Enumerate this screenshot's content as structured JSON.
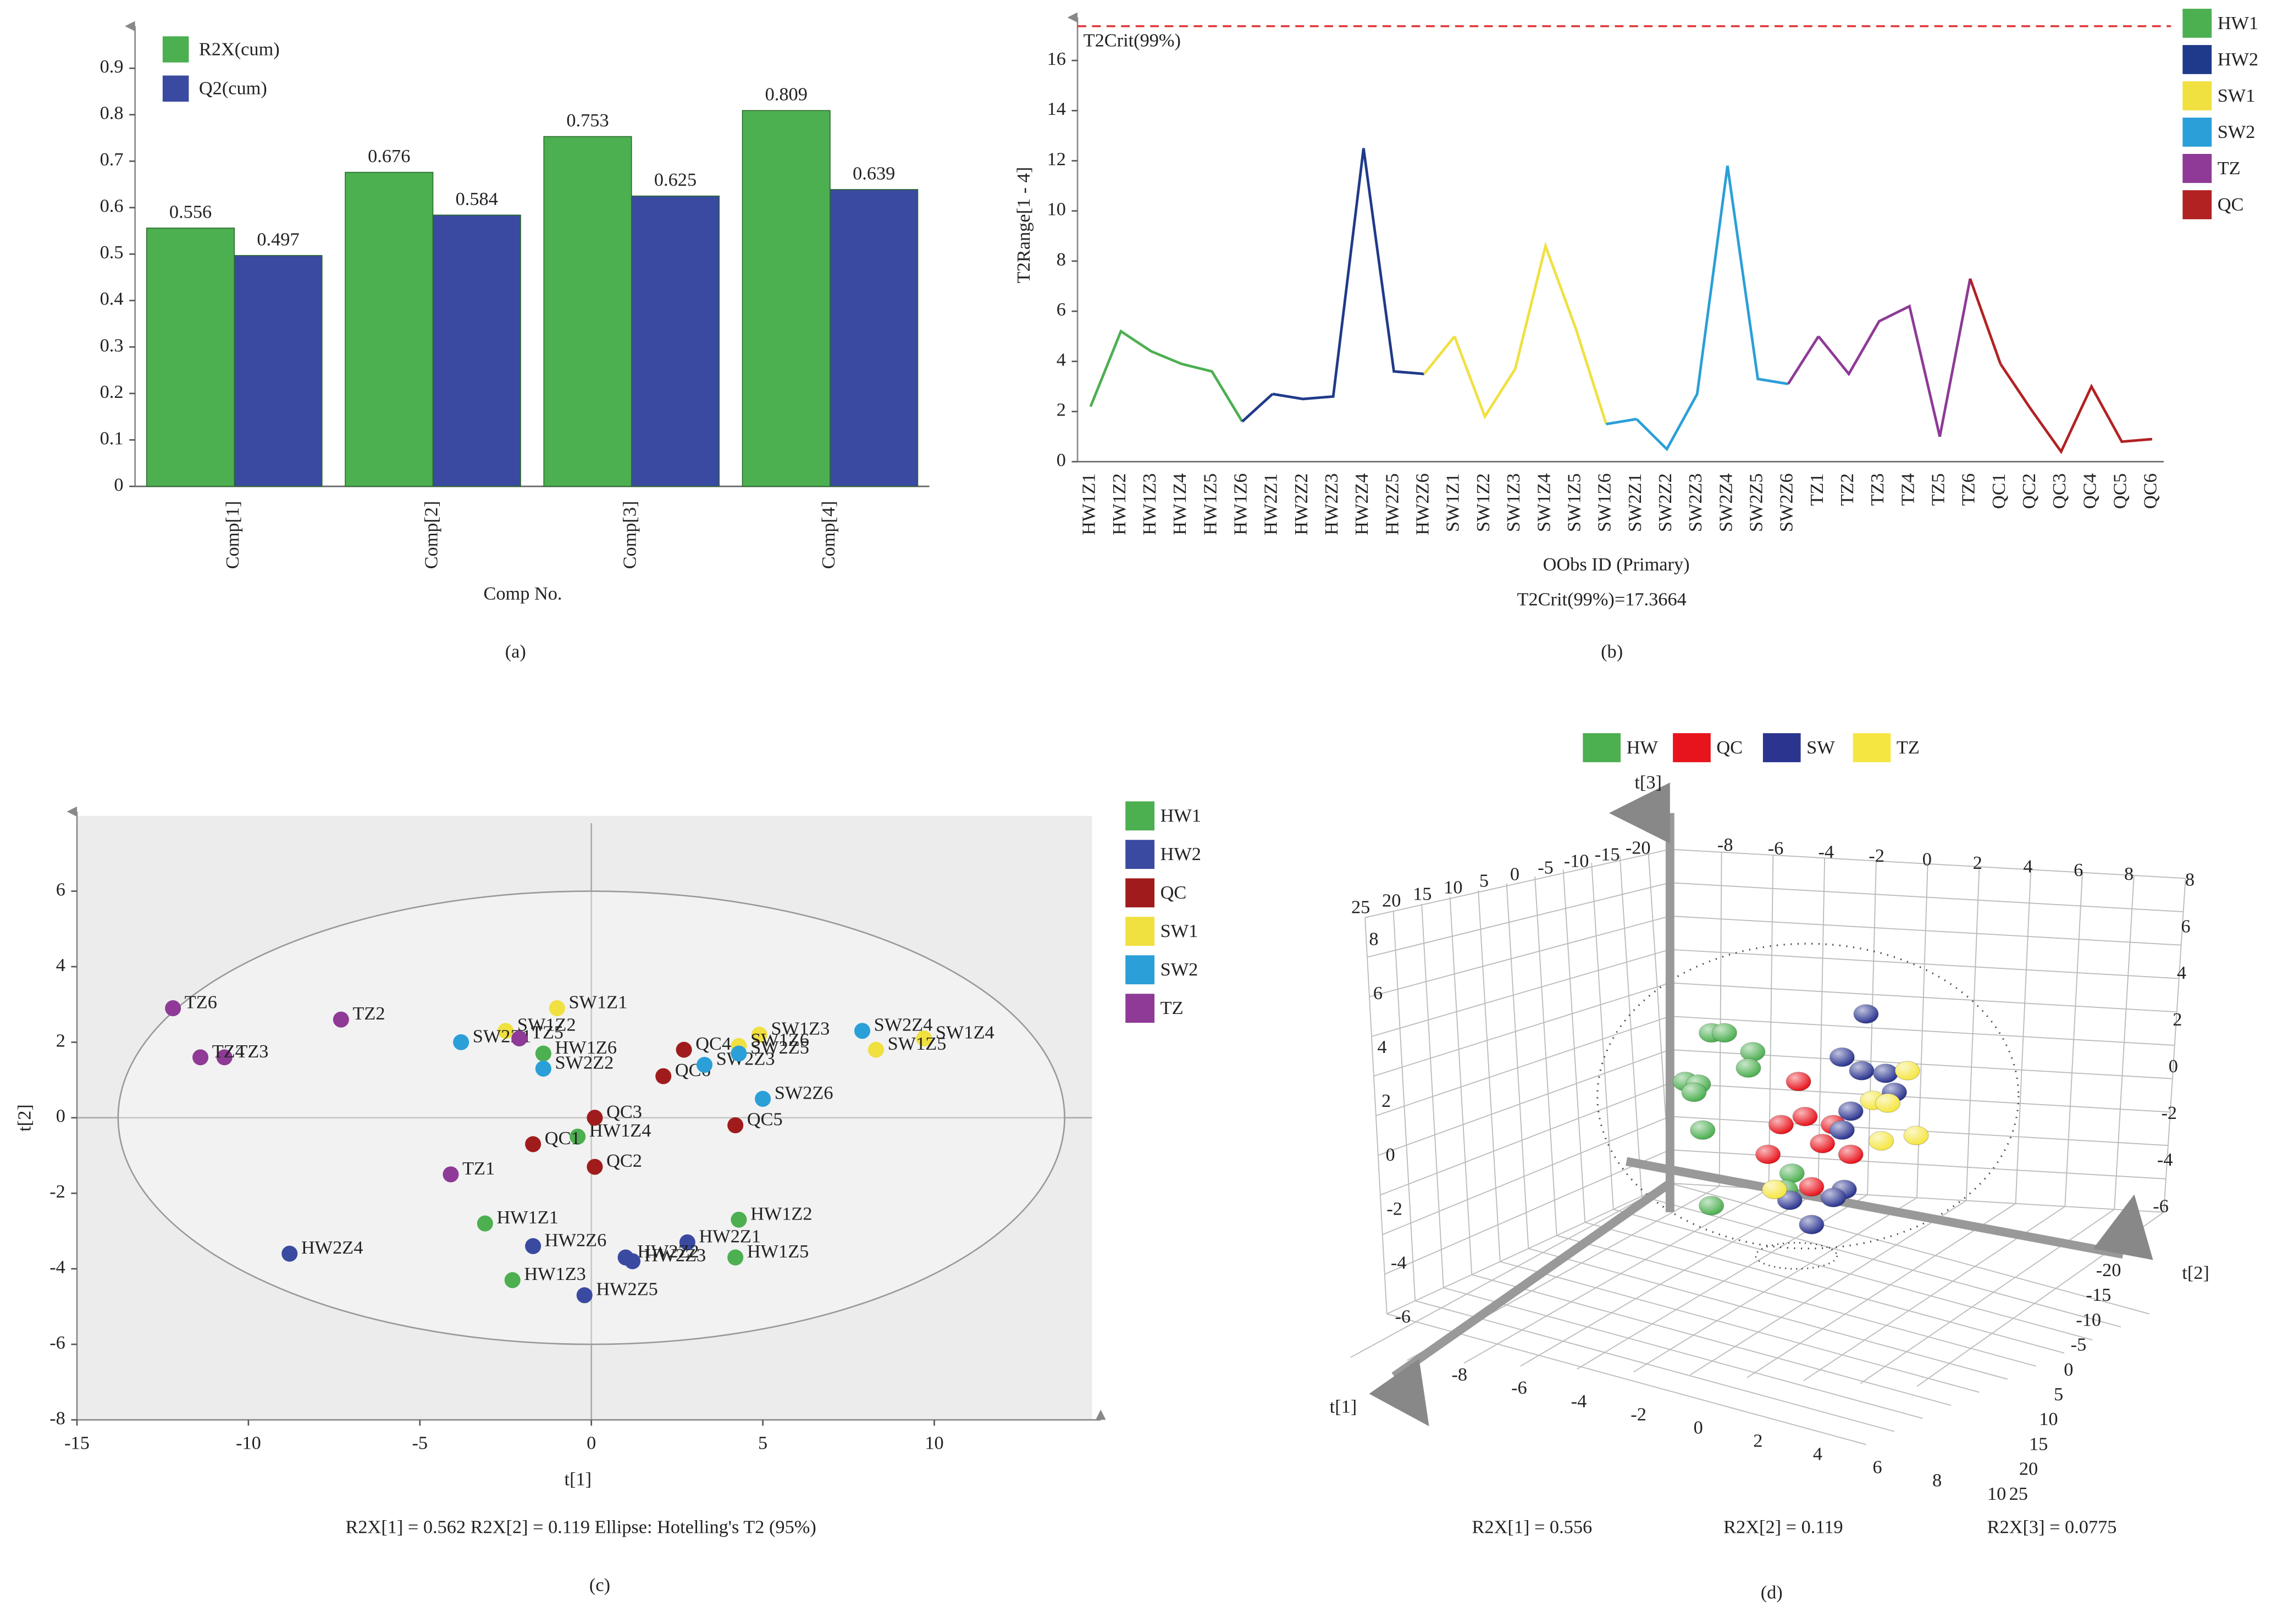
{
  "chart_data": [
    {
      "type": "bar",
      "caption": "(a)",
      "x_label": "Comp No.",
      "categories": [
        "Comp[1]",
        "Comp[2]",
        "Comp[3]",
        "Comp[4]"
      ],
      "series": [
        {
          "name": "R2X(cum)",
          "color": "#4caf50",
          "values": [
            0.556,
            0.676,
            0.753,
            0.809
          ]
        },
        {
          "name": "Q2(cum)",
          "color": "#3a4aa0",
          "values": [
            0.497,
            0.584,
            0.625,
            0.639
          ]
        }
      ],
      "ylim": [
        0,
        0.95
      ],
      "yticks": [
        0,
        0.1,
        0.2,
        0.3,
        0.4,
        0.5,
        0.6,
        0.7,
        0.8,
        0.9
      ],
      "legend": "top-left"
    },
    {
      "type": "line",
      "caption": "(b)",
      "x_label": "OObs ID (Primary)",
      "y_label": "T2Range[1 - 4]",
      "subtitle": "T2Crit(99%)=17.3664",
      "threshold": 17.3664,
      "threshold_label": "T2Crit(99%)",
      "threshold_color": "#e03030",
      "categories": [
        "HW1Z1",
        "HW1Z2",
        "HW1Z3",
        "HW1Z4",
        "HW1Z5",
        "HW1Z6",
        "HW2Z1",
        "HW2Z2",
        "HW2Z3",
        "HW2Z4",
        "HW2Z5",
        "HW2Z6",
        "SW1Z1",
        "SW1Z2",
        "SW1Z3",
        "SW1Z4",
        "SW1Z5",
        "SW1Z6",
        "SW2Z1",
        "SW2Z2",
        "SW2Z3",
        "SW2Z4",
        "SW2Z5",
        "SW2Z6",
        "TZ1",
        "TZ2",
        "TZ3",
        "TZ4",
        "TZ5",
        "TZ6",
        "QC1",
        "QC2",
        "QC3",
        "QC4",
        "QC5",
        "QC6"
      ],
      "series": [
        {
          "name": "HW1",
          "color": "#4caf50",
          "values": [
            2.2,
            5.2,
            4.4,
            3.9,
            3.6,
            1.6,
            null,
            null,
            null,
            null,
            null,
            null,
            null,
            null,
            null,
            null,
            null,
            null,
            null,
            null,
            null,
            null,
            null,
            null,
            null,
            null,
            null,
            null,
            null,
            null,
            null,
            null,
            null,
            null,
            null,
            null
          ]
        },
        {
          "name": "HW2",
          "color": "#1f3a8a",
          "values": [
            null,
            null,
            null,
            null,
            null,
            null,
            2.7,
            2.5,
            2.6,
            12.5,
            3.6,
            3.5,
            null,
            null,
            null,
            null,
            null,
            null,
            null,
            null,
            null,
            null,
            null,
            null,
            null,
            null,
            null,
            null,
            null,
            null,
            null,
            null,
            null,
            null,
            null,
            null
          ]
        },
        {
          "name": "SW1",
          "color": "#f0e040",
          "values": [
            null,
            null,
            null,
            null,
            null,
            null,
            null,
            null,
            null,
            null,
            null,
            null,
            5.0,
            1.8,
            3.7,
            8.6,
            5.3,
            1.5,
            null,
            null,
            null,
            null,
            null,
            null,
            null,
            null,
            null,
            null,
            null,
            null,
            null,
            null,
            null,
            null,
            null,
            null
          ]
        },
        {
          "name": "SW2",
          "color": "#2a9fd8",
          "values": [
            null,
            null,
            null,
            null,
            null,
            null,
            null,
            null,
            null,
            null,
            null,
            null,
            null,
            null,
            null,
            null,
            null,
            null,
            1.7,
            0.5,
            2.7,
            11.8,
            3.3,
            3.1,
            null,
            null,
            null,
            null,
            null,
            null,
            null,
            null,
            null,
            null,
            null,
            null
          ]
        },
        {
          "name": "TZ",
          "color": "#8e3a96",
          "values": [
            null,
            null,
            null,
            null,
            null,
            null,
            null,
            null,
            null,
            null,
            null,
            null,
            null,
            null,
            null,
            null,
            null,
            null,
            null,
            null,
            null,
            null,
            null,
            null,
            5.0,
            3.5,
            5.6,
            6.2,
            1.0,
            7.3,
            null,
            null,
            null,
            null,
            null,
            null
          ]
        },
        {
          "name": "QC",
          "color": "#b22222",
          "values": [
            null,
            null,
            null,
            null,
            null,
            null,
            null,
            null,
            null,
            null,
            null,
            null,
            null,
            null,
            null,
            null,
            null,
            null,
            null,
            null,
            null,
            null,
            null,
            null,
            null,
            null,
            null,
            null,
            null,
            null,
            3.9,
            2.1,
            0.4,
            3.0,
            0.8,
            0.9
          ]
        }
      ],
      "ylim": [
        0,
        17.6
      ],
      "yticks": [
        0,
        2,
        4,
        6,
        8,
        10,
        12,
        14,
        16
      ],
      "legend": "top-right"
    },
    {
      "type": "scatter",
      "caption": "(c)",
      "x_label": "t[1]",
      "y_label": "t[2]",
      "footnote": "R2X[1] = 0.562     R2X[2] = 0.119     Ellipse: Hotelling's T2 (95%)",
      "ellipse": {
        "rx": 13.8,
        "ry": 6.0
      },
      "xlim": [
        -15,
        14.6
      ],
      "xticks": [
        -15,
        -10,
        -5,
        0,
        5,
        10
      ],
      "ylim": [
        -8,
        7.8
      ],
      "yticks": [
        -8,
        -6,
        -4,
        -2,
        0,
        2,
        4,
        6
      ],
      "legend": "right",
      "series": [
        {
          "name": "HW1",
          "color": "#4caf50",
          "labels": [
            "HW1Z1",
            "HW1Z2",
            "HW1Z3",
            "HW1Z4",
            "HW1Z5",
            "HW1Z6"
          ],
          "x": [
            -3.1,
            4.3,
            -2.3,
            -0.4,
            4.2,
            -1.4
          ],
          "y": [
            -2.8,
            -2.7,
            -4.3,
            -0.5,
            -3.7,
            1.7
          ]
        },
        {
          "name": "HW2",
          "color": "#3a4aa0",
          "labels": [
            "HW2Z1",
            "HW2Z2",
            "HW2Z3",
            "HW2Z4",
            "HW2Z5",
            "HW2Z6"
          ],
          "x": [
            2.8,
            1.0,
            1.2,
            -8.8,
            -0.2,
            -1.7
          ],
          "y": [
            -3.3,
            -3.7,
            -3.8,
            -3.6,
            -4.7,
            -3.4
          ]
        },
        {
          "name": "QC",
          "color": "#a01c1c",
          "labels": [
            "QC1",
            "QC2",
            "QC3",
            "QC4",
            "QC5",
            "QC6"
          ],
          "x": [
            -1.7,
            0.1,
            0.1,
            2.7,
            4.2,
            2.1
          ],
          "y": [
            -0.7,
            -1.3,
            0.0,
            1.8,
            -0.2,
            1.1
          ]
        },
        {
          "name": "SW1",
          "color": "#f0e040",
          "labels": [
            "SW1Z1",
            "SW1Z2",
            "SW1Z3",
            "SW1Z4",
            "SW1Z5",
            "SW1Z6"
          ],
          "x": [
            -1.0,
            -2.5,
            4.9,
            9.7,
            8.3,
            4.3
          ],
          "y": [
            2.9,
            2.3,
            2.2,
            2.1,
            1.8,
            1.9
          ]
        },
        {
          "name": "SW2",
          "color": "#2a9fd8",
          "labels": [
            "SW2Z1",
            "SW2Z2",
            "SW2Z3",
            "SW2Z4",
            "SW2Z5",
            "SW2Z6"
          ],
          "x": [
            -3.8,
            -1.4,
            3.3,
            7.9,
            4.3,
            5.0
          ],
          "y": [
            2.0,
            1.3,
            1.4,
            2.3,
            1.7,
            0.5
          ]
        },
        {
          "name": "TZ",
          "color": "#8e3a96",
          "labels": [
            "TZ1",
            "TZ2",
            "TZ3",
            "TZ4",
            "TZ5",
            "TZ6"
          ],
          "x": [
            -4.1,
            -7.3,
            -10.7,
            -11.4,
            -2.1,
            -12.2
          ],
          "y": [
            -1.5,
            2.6,
            1.6,
            1.6,
            2.1,
            2.9
          ]
        }
      ]
    },
    {
      "type": "scatter3d",
      "caption": "(d)",
      "axis_labels": [
        "t[1]",
        "t[2]",
        "t[3]"
      ],
      "footnotes": [
        "R2X[1] = 0.556",
        "R2X[2] = 0.119",
        "R2X[3] = 0.0775"
      ],
      "legend": "top",
      "tick_rows": [
        [
          -8,
          -6,
          -4,
          -2,
          0,
          2,
          4,
          6,
          8
        ],
        [
          25,
          20,
          15,
          10,
          5,
          0,
          -5,
          -10,
          -15,
          -20
        ],
        [
          8,
          6,
          4,
          2,
          0,
          -2,
          -4,
          -6
        ],
        [
          8,
          6,
          4,
          2,
          0,
          -2,
          -4,
          -6
        ],
        [
          -20,
          -15,
          -10,
          -5,
          0,
          5,
          10,
          15,
          20,
          25
        ],
        [
          -8,
          -6,
          -4,
          -2,
          0,
          2,
          4,
          6,
          8,
          10
        ]
      ],
      "series": [
        {
          "name": "HW",
          "color": "#4caf50",
          "t2": [
            1.9,
            2.5,
            3.8,
            3.6,
            0.7,
            1.3,
            1.1,
            1.5,
            5.6,
            5.3,
            1.9
          ],
          "t3": [
            5.3,
            5.3,
            4.6,
            4.0,
            3.5,
            3.4,
            3.1,
            1.7,
            0.1,
            -0.5,
            -1.1
          ]
        },
        {
          "name": "QC",
          "color": "#e8141c",
          "t2": [
            5.9,
            6.2,
            5.1,
            7.5,
            7.0,
            8.3,
            4.5,
            6.5
          ],
          "t3": [
            3.5,
            2.2,
            1.9,
            1.9,
            1.2,
            0.8,
            0.8,
            -0.4
          ]
        },
        {
          "name": "SW",
          "color": "#2b3590",
          "t2": [
            9.0,
            7.9,
            8.8,
            9.9,
            10.3,
            8.3,
            7.9,
            8.0,
            7.5,
            5.5,
            6.5
          ],
          "t3": [
            6.0,
            4.4,
            3.9,
            3.8,
            3.1,
            2.4,
            1.7,
            -0.5,
            -0.8,
            -0.9,
            -1.8
          ]
        },
        {
          "name": "TZ",
          "color": "#f5e642",
          "t2": [
            10.9,
            9.3,
            10.0,
            9.7,
            11.3,
            4.8
          ],
          "t3": [
            3.9,
            2.8,
            2.7,
            1.3,
            1.5,
            -0.5
          ]
        }
      ]
    }
  ]
}
